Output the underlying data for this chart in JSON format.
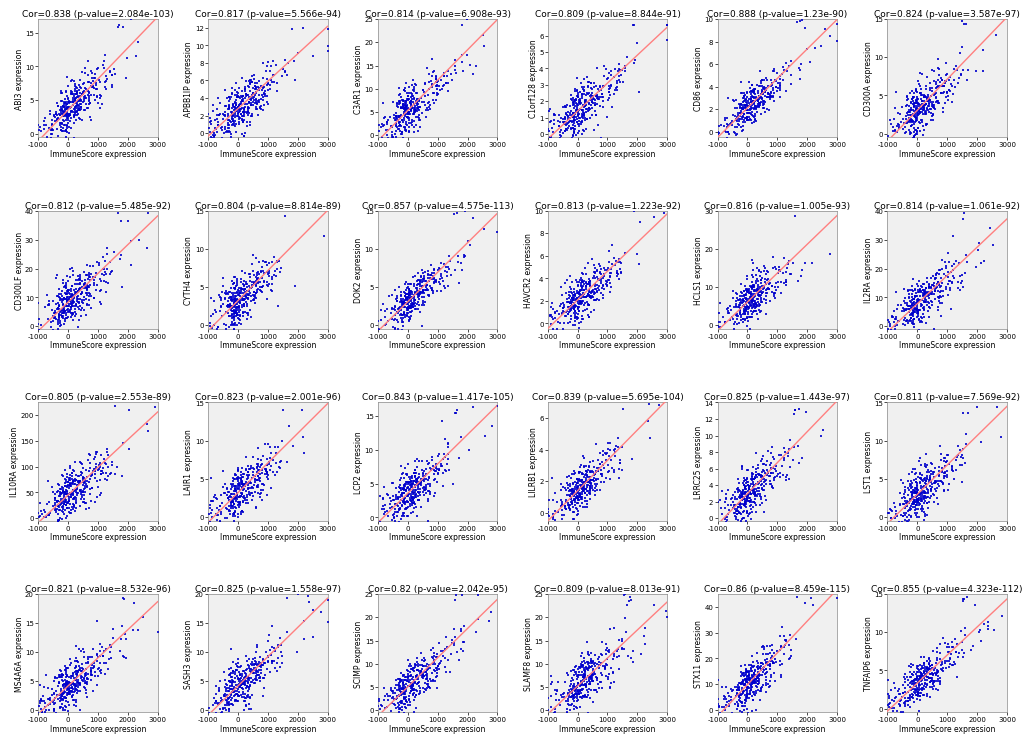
{
  "panels": [
    {
      "gene": "ABI3",
      "cor": 0.838,
      "pval": "2.084e-103",
      "ylim": [
        -0.5,
        17
      ],
      "yticks": [
        0,
        5,
        10,
        15
      ]
    },
    {
      "gene": "APBB1IP",
      "cor": 0.817,
      "pval": "5.566e-94",
      "ylim": [
        -0.5,
        13
      ],
      "yticks": [
        0,
        2,
        4,
        6,
        8,
        10,
        12
      ]
    },
    {
      "gene": "C3AR1",
      "cor": 0.814,
      "pval": "6.908e-93",
      "ylim": [
        -0.5,
        25
      ],
      "yticks": [
        0,
        5,
        10,
        15,
        20,
        25
      ]
    },
    {
      "gene": "C1orf128",
      "cor": 0.809,
      "pval": "8.844e-91",
      "ylim": [
        -0.2,
        7
      ],
      "yticks": [
        0,
        1,
        2,
        3,
        4,
        5,
        6
      ]
    },
    {
      "gene": "CD86",
      "cor": 0.888,
      "pval": "1.23e-90",
      "ylim": [
        -0.5,
        10
      ],
      "yticks": [
        0,
        2,
        4,
        6,
        8,
        10
      ]
    },
    {
      "gene": "CD300A",
      "cor": 0.824,
      "pval": "3.587e-97",
      "ylim": [
        -0.5,
        15
      ],
      "yticks": [
        0,
        5,
        10,
        15
      ]
    },
    {
      "gene": "CD300LF",
      "cor": 0.812,
      "pval": "5.485e-92",
      "ylim": [
        -1,
        40
      ],
      "yticks": [
        0,
        10,
        20,
        30,
        40
      ]
    },
    {
      "gene": "CYTH4",
      "cor": 0.804,
      "pval": "8.814e-89",
      "ylim": [
        -0.5,
        15
      ],
      "yticks": [
        0,
        5,
        10,
        15
      ]
    },
    {
      "gene": "DOK2",
      "cor": 0.857,
      "pval": "4.575e-113",
      "ylim": [
        -0.5,
        15
      ],
      "yticks": [
        0,
        5,
        10,
        15
      ]
    },
    {
      "gene": "HAVCR2",
      "cor": 0.813,
      "pval": "1.223e-92",
      "ylim": [
        -0.5,
        10
      ],
      "yticks": [
        0,
        2,
        4,
        6,
        8,
        10
      ]
    },
    {
      "gene": "HCLS1",
      "cor": 0.816,
      "pval": "1.005e-93",
      "ylim": [
        -1,
        30
      ],
      "yticks": [
        0,
        10,
        20,
        30
      ]
    },
    {
      "gene": "IL2RA",
      "cor": 0.814,
      "pval": "1.061e-92",
      "ylim": [
        -1,
        40
      ],
      "yticks": [
        0,
        10,
        20,
        30,
        40
      ]
    },
    {
      "gene": "IL10RA",
      "cor": 0.805,
      "pval": "2.553e-89",
      "ylim": [
        -5,
        225
      ],
      "yticks": [
        0,
        50,
        100,
        150,
        200
      ]
    },
    {
      "gene": "LAIR1",
      "cor": 0.823,
      "pval": "2.001e-96",
      "ylim": [
        -0.5,
        15
      ],
      "yticks": [
        0,
        5,
        10,
        15
      ]
    },
    {
      "gene": "LCP2",
      "cor": 0.843,
      "pval": "1.417e-105",
      "ylim": [
        -0.5,
        17
      ],
      "yticks": [
        0,
        5,
        10,
        15
      ]
    },
    {
      "gene": "LILRB1",
      "cor": 0.839,
      "pval": "5.695e-104",
      "ylim": [
        -0.5,
        7
      ],
      "yticks": [
        0,
        2,
        4,
        6
      ]
    },
    {
      "gene": "LRRC25",
      "cor": 0.825,
      "pval": "1.443e-97",
      "ylim": [
        -0.3,
        14
      ],
      "yticks": [
        0,
        2,
        4,
        6,
        8,
        10,
        12,
        14
      ]
    },
    {
      "gene": "LST1",
      "cor": 0.811,
      "pval": "7.569e-92",
      "ylim": [
        -0.5,
        15
      ],
      "yticks": [
        0,
        5,
        10,
        15
      ]
    },
    {
      "gene": "MS4A6A",
      "cor": 0.821,
      "pval": "8.532e-96",
      "ylim": [
        -0.5,
        20
      ],
      "yticks": [
        0,
        5,
        10,
        15,
        20
      ]
    },
    {
      "gene": "SASH3",
      "cor": 0.825,
      "pval": "1.558e-97",
      "ylim": [
        -0.5,
        20
      ],
      "yticks": [
        0,
        5,
        10,
        15,
        20
      ]
    },
    {
      "gene": "SCIMP",
      "cor": 0.82,
      "pval": "2.042e-95",
      "ylim": [
        -0.5,
        25
      ],
      "yticks": [
        0,
        5,
        10,
        15,
        20,
        25
      ]
    },
    {
      "gene": "SLAMF8",
      "cor": 0.809,
      "pval": "8.013e-91",
      "ylim": [
        -0.5,
        25
      ],
      "yticks": [
        0,
        5,
        10,
        15,
        20,
        25
      ]
    },
    {
      "gene": "STX11",
      "cor": 0.86,
      "pval": "8.459e-115",
      "ylim": [
        -1,
        45
      ],
      "yticks": [
        0,
        10,
        20,
        30,
        40
      ]
    },
    {
      "gene": "TNFAIP6",
      "cor": 0.855,
      "pval": "4.323e-112",
      "ylim": [
        -0.5,
        15
      ],
      "yticks": [
        0,
        5,
        10,
        15
      ]
    }
  ],
  "xlim": [
    -1000,
    3000
  ],
  "xticks": [
    -1000,
    0,
    1000,
    2000,
    3000
  ],
  "xlabel": "ImmuneScore expression",
  "dot_color": "#0000CC",
  "line_color": "#FF8080",
  "bg_color": "#F0F0F0",
  "title_fontsize": 6.5,
  "label_fontsize": 5.5,
  "tick_fontsize": 5.0,
  "n_rows": 4,
  "n_cols": 6
}
